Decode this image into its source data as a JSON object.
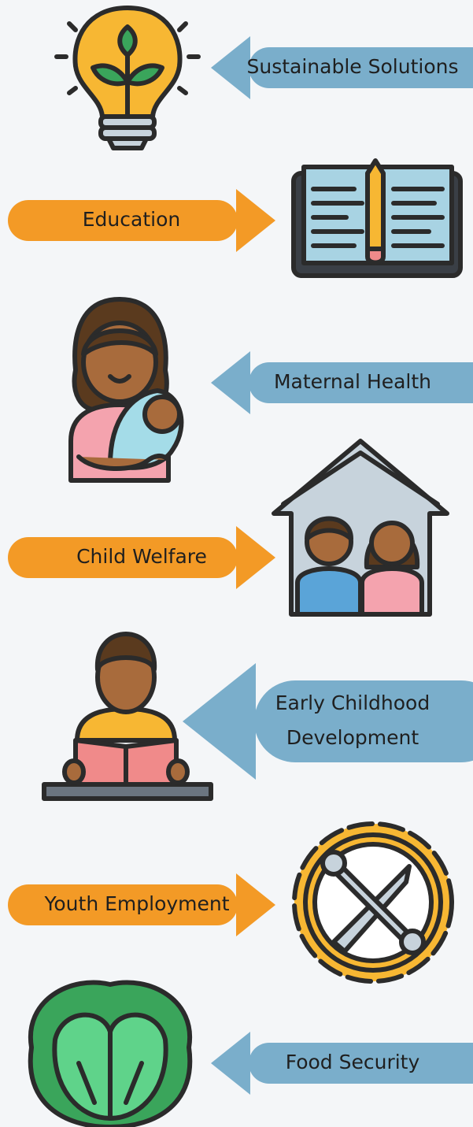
{
  "items": [
    {
      "lines": [
        "Sustainable Solutions"
      ]
    },
    {
      "lines": [
        "Education"
      ]
    },
    {
      "lines": [
        "Maternal Health"
      ]
    },
    {
      "lines": [
        "Child Welfare"
      ]
    },
    {
      "lines": [
        "Early Childhood",
        "Development"
      ]
    },
    {
      "lines": [
        "Youth Employment"
      ]
    },
    {
      "lines": [
        "Food Security"
      ]
    }
  ]
}
